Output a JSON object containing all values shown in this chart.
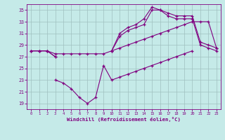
{
  "xlabel": "Windchill (Refroidissement éolien,°C)",
  "bg_color": "#c5eae8",
  "line_color": "#800080",
  "grid_color": "#9fbfbf",
  "xlim": [
    -0.5,
    23.5
  ],
  "ylim": [
    18,
    36
  ],
  "yticks": [
    19,
    21,
    23,
    25,
    27,
    29,
    31,
    33,
    35
  ],
  "xticks": [
    0,
    1,
    2,
    3,
    4,
    5,
    6,
    7,
    8,
    9,
    10,
    11,
    12,
    13,
    14,
    15,
    16,
    17,
    18,
    19,
    20,
    21,
    22,
    23
  ],
  "line1_x": [
    0,
    1,
    2,
    3,
    10,
    11,
    12,
    13,
    14,
    15,
    16,
    17,
    18,
    19,
    20,
    21,
    22,
    23
  ],
  "line1_y": [
    28,
    28,
    28,
    27,
    28,
    31,
    32,
    32.5,
    33.5,
    35.5,
    35,
    34.5,
    34,
    34,
    34,
    29.5,
    29,
    28.5
  ],
  "line2_x": [
    0,
    1,
    2,
    3,
    10,
    11,
    12,
    13,
    14,
    15,
    16,
    17,
    18,
    19,
    20,
    21,
    22,
    23
  ],
  "line2_y": [
    28,
    28,
    28,
    27,
    28,
    30.5,
    31.5,
    32,
    32.5,
    35,
    35,
    34,
    33.5,
    33.5,
    33.5,
    29,
    28.5,
    28
  ],
  "line3_x": [
    0,
    1,
    2,
    3,
    4,
    5,
    6,
    7,
    8,
    9,
    10,
    11,
    12,
    13,
    14,
    15,
    16,
    17,
    18,
    19,
    20,
    21,
    22,
    23
  ],
  "line3_y": [
    28,
    28,
    28,
    27.5,
    27.5,
    27.5,
    27.5,
    27.5,
    27.5,
    27.5,
    28,
    28.5,
    29,
    29.5,
    30,
    30.5,
    31,
    31.5,
    32,
    32.5,
    33,
    33,
    33,
    28.5
  ],
  "line4_x": [
    3,
    4,
    5,
    6,
    7,
    8,
    9,
    10,
    11,
    12,
    13,
    14,
    15,
    16,
    17,
    18,
    19,
    20
  ],
  "line4_y": [
    23,
    22.5,
    21.5,
    20,
    19,
    20,
    25.5,
    23,
    23.5,
    24,
    24.5,
    25,
    25.5,
    26,
    26.5,
    27,
    27.5,
    28
  ]
}
